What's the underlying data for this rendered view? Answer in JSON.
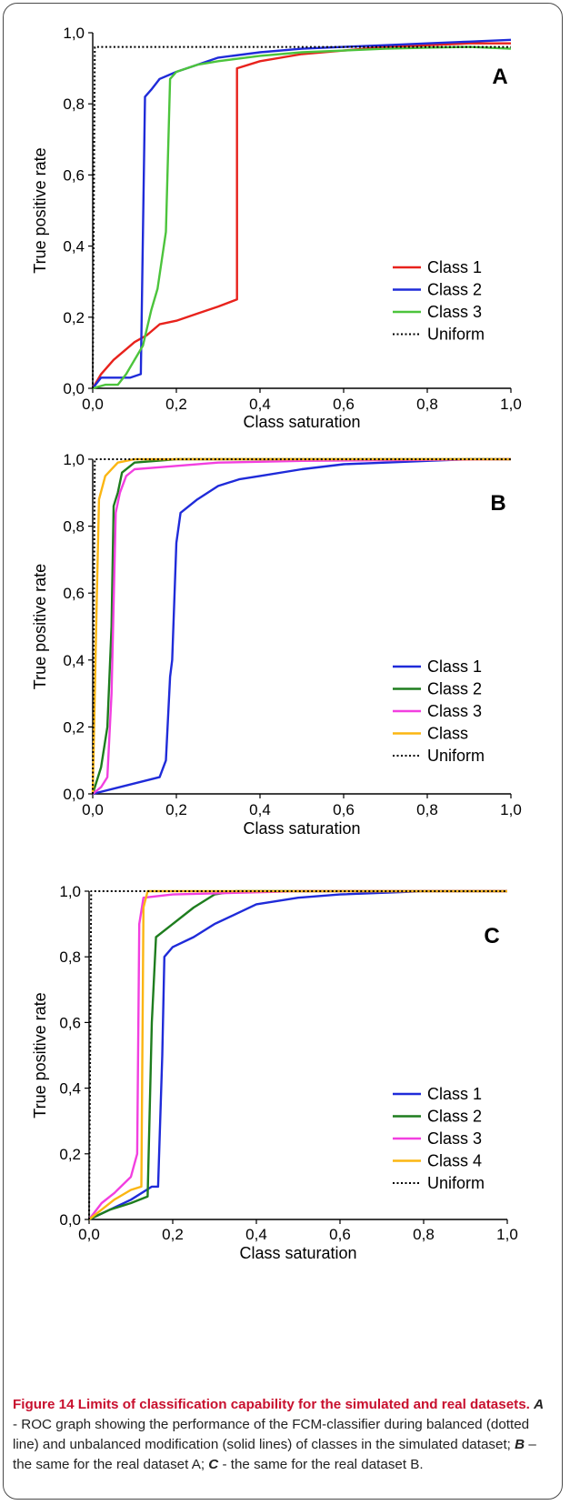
{
  "figure": {
    "label": "Figure 14",
    "title": "Limits of classification capability for the simulated and real datasets.",
    "caption_parts": [
      {
        "t": "A",
        "style": "bi"
      },
      {
        "t": " - ROC graph showing the performance of the FCM-classifier during balanced (dotted line) and unbalanced modification (solid lines) of classes in the simulated dataset; ",
        "style": "n"
      },
      {
        "t": "B",
        "style": "bi"
      },
      {
        "t": " – the same for the real dataset A; ",
        "style": "n"
      },
      {
        "t": "C",
        "style": "bi"
      },
      {
        "t": " - the same for the real dataset B.",
        "style": "n"
      }
    ]
  },
  "colors": {
    "red": "#e8221c",
    "blue": "#1f2bd9",
    "light_green": "#4cc43c",
    "dark_green": "#1e7d1e",
    "magenta": "#f23fe0",
    "orange": "#fbb612",
    "black": "#000000"
  },
  "chart_data": [
    {
      "type": "line",
      "panel_label": "A",
      "xlabel": "Class saturation",
      "ylabel": "True positive rate",
      "xlim": [
        0,
        1
      ],
      "ylim": [
        0,
        1
      ],
      "x_ticks": [
        "0,0",
        "0,2",
        "0,4",
        "0,6",
        "0,8",
        "1,0"
      ],
      "y_ticks": [
        "0,0",
        "0,2",
        "0,4",
        "0,6",
        "0,8",
        "1,0"
      ],
      "legend_position": "bottom-right",
      "series": [
        {
          "name": "Class 1",
          "color": "#e8221c",
          "style": "solid",
          "points": [
            [
              0,
              0
            ],
            [
              0.02,
              0.04
            ],
            [
              0.05,
              0.08
            ],
            [
              0.1,
              0.13
            ],
            [
              0.13,
              0.15
            ],
            [
              0.16,
              0.18
            ],
            [
              0.2,
              0.19
            ],
            [
              0.25,
              0.21
            ],
            [
              0.3,
              0.23
            ],
            [
              0.345,
              0.25
            ],
            [
              0.345,
              0.9
            ],
            [
              0.4,
              0.92
            ],
            [
              0.5,
              0.94
            ],
            [
              0.6,
              0.95
            ],
            [
              0.7,
              0.96
            ],
            [
              0.8,
              0.965
            ],
            [
              0.9,
              0.97
            ],
            [
              1.0,
              0.97
            ]
          ]
        },
        {
          "name": "Class 2",
          "color": "#1f2bd9",
          "style": "solid",
          "points": [
            [
              0,
              0
            ],
            [
              0.02,
              0.03
            ],
            [
              0.05,
              0.03
            ],
            [
              0.09,
              0.03
            ],
            [
              0.115,
              0.04
            ],
            [
              0.125,
              0.82
            ],
            [
              0.14,
              0.84
            ],
            [
              0.16,
              0.87
            ],
            [
              0.2,
              0.89
            ],
            [
              0.25,
              0.91
            ],
            [
              0.3,
              0.93
            ],
            [
              0.4,
              0.945
            ],
            [
              0.5,
              0.955
            ],
            [
              0.6,
              0.96
            ],
            [
              0.7,
              0.965
            ],
            [
              0.8,
              0.97
            ],
            [
              0.9,
              0.975
            ],
            [
              1.0,
              0.98
            ]
          ]
        },
        {
          "name": "Class 3",
          "color": "#4cc43c",
          "style": "solid",
          "points": [
            [
              0,
              0
            ],
            [
              0.03,
              0.01
            ],
            [
              0.06,
              0.01
            ],
            [
              0.08,
              0.04
            ],
            [
              0.12,
              0.12
            ],
            [
              0.14,
              0.22
            ],
            [
              0.155,
              0.28
            ],
            [
              0.175,
              0.44
            ],
            [
              0.185,
              0.87
            ],
            [
              0.2,
              0.89
            ],
            [
              0.25,
              0.91
            ],
            [
              0.3,
              0.92
            ],
            [
              0.4,
              0.935
            ],
            [
              0.5,
              0.945
            ],
            [
              0.6,
              0.95
            ],
            [
              0.7,
              0.955
            ],
            [
              0.8,
              0.958
            ],
            [
              0.9,
              0.96
            ],
            [
              1.0,
              0.955
            ]
          ]
        },
        {
          "name": "Uniform",
          "color": "#000000",
          "style": "dotted",
          "points": [
            [
              0,
              0
            ],
            [
              0.005,
              0.96
            ],
            [
              1.0,
              0.96
            ]
          ]
        }
      ]
    },
    {
      "type": "line",
      "panel_label": "B",
      "xlabel": "Class saturation",
      "ylabel": "True positive rate",
      "xlim": [
        0,
        1
      ],
      "ylim": [
        0,
        1
      ],
      "x_ticks": [
        "0,0",
        "0,2",
        "0,4",
        "0,6",
        "0,8",
        "1,0"
      ],
      "y_ticks": [
        "0,0",
        "0,2",
        "0,4",
        "0,6",
        "0,8",
        "1,0"
      ],
      "legend_position": "bottom-right",
      "series": [
        {
          "name": "Class 1",
          "color": "#1f2bd9",
          "style": "solid",
          "points": [
            [
              0,
              0
            ],
            [
              0.16,
              0.05
            ],
            [
              0.175,
              0.1
            ],
            [
              0.185,
              0.35
            ],
            [
              0.19,
              0.4
            ],
            [
              0.2,
              0.75
            ],
            [
              0.21,
              0.84
            ],
            [
              0.25,
              0.88
            ],
            [
              0.3,
              0.92
            ],
            [
              0.35,
              0.94
            ],
            [
              0.4,
              0.95
            ],
            [
              0.5,
              0.97
            ],
            [
              0.6,
              0.985
            ],
            [
              0.7,
              0.99
            ],
            [
              0.8,
              0.995
            ],
            [
              0.9,
              1.0
            ],
            [
              1.0,
              1.0
            ]
          ]
        },
        {
          "name": "Class 2",
          "color": "#1e7d1e",
          "style": "solid",
          "points": [
            [
              0,
              0
            ],
            [
              0.02,
              0.08
            ],
            [
              0.035,
              0.2
            ],
            [
              0.045,
              0.5
            ],
            [
              0.05,
              0.86
            ],
            [
              0.06,
              0.9
            ],
            [
              0.07,
              0.96
            ],
            [
              0.1,
              0.99
            ],
            [
              0.2,
              1.0
            ],
            [
              1.0,
              1.0
            ]
          ]
        },
        {
          "name": "Class 3",
          "color": "#f23fe0",
          "style": "solid",
          "points": [
            [
              0,
              0
            ],
            [
              0.02,
              0.02
            ],
            [
              0.035,
              0.05
            ],
            [
              0.045,
              0.3
            ],
            [
              0.055,
              0.84
            ],
            [
              0.065,
              0.9
            ],
            [
              0.08,
              0.95
            ],
            [
              0.1,
              0.97
            ],
            [
              0.15,
              0.975
            ],
            [
              0.3,
              0.99
            ],
            [
              0.5,
              0.995
            ],
            [
              1.0,
              1.0
            ]
          ]
        },
        {
          "name": "Class",
          "color": "#fbb612",
          "style": "solid",
          "points": [
            [
              0,
              0
            ],
            [
              0.01,
              0.6
            ],
            [
              0.015,
              0.88
            ],
            [
              0.03,
              0.95
            ],
            [
              0.06,
              0.99
            ],
            [
              0.1,
              1.0
            ],
            [
              1.0,
              1.0
            ]
          ]
        },
        {
          "name": "Uniform",
          "color": "#000000",
          "style": "dotted",
          "points": [
            [
              0,
              0
            ],
            [
              0.005,
              1.0
            ],
            [
              1.0,
              1.0
            ]
          ]
        }
      ]
    },
    {
      "type": "line",
      "panel_label": "C",
      "xlabel": "Class saturation",
      "ylabel": "True positive rate",
      "xlim": [
        0,
        1
      ],
      "ylim": [
        0,
        1
      ],
      "x_ticks": [
        "0,0",
        "0,2",
        "0,4",
        "0,6",
        "0,8",
        "1,0"
      ],
      "y_ticks": [
        "0,0",
        "0,2",
        "0,4",
        "0,6",
        "0,8",
        "1,0"
      ],
      "legend_position": "bottom-right",
      "series": [
        {
          "name": "Class 1",
          "color": "#1f2bd9",
          "style": "solid",
          "points": [
            [
              0,
              0
            ],
            [
              0.05,
              0.03
            ],
            [
              0.1,
              0.06
            ],
            [
              0.15,
              0.1
            ],
            [
              0.165,
              0.1
            ],
            [
              0.175,
              0.5
            ],
            [
              0.18,
              0.8
            ],
            [
              0.2,
              0.83
            ],
            [
              0.25,
              0.86
            ],
            [
              0.3,
              0.9
            ],
            [
              0.35,
              0.93
            ],
            [
              0.4,
              0.96
            ],
            [
              0.5,
              0.98
            ],
            [
              0.6,
              0.99
            ],
            [
              0.8,
              1.0
            ],
            [
              1.0,
              1.0
            ]
          ]
        },
        {
          "name": "Class 2",
          "color": "#1e7d1e",
          "style": "solid",
          "points": [
            [
              0,
              0
            ],
            [
              0.05,
              0.03
            ],
            [
              0.1,
              0.05
            ],
            [
              0.14,
              0.07
            ],
            [
              0.15,
              0.6
            ],
            [
              0.16,
              0.86
            ],
            [
              0.2,
              0.9
            ],
            [
              0.25,
              0.95
            ],
            [
              0.3,
              0.99
            ],
            [
              0.35,
              1.0
            ],
            [
              1.0,
              1.0
            ]
          ]
        },
        {
          "name": "Class 3",
          "color": "#f23fe0",
          "style": "solid",
          "points": [
            [
              0,
              0
            ],
            [
              0.03,
              0.05
            ],
            [
              0.06,
              0.08
            ],
            [
              0.1,
              0.13
            ],
            [
              0.115,
              0.2
            ],
            [
              0.12,
              0.9
            ],
            [
              0.13,
              0.98
            ],
            [
              0.2,
              0.99
            ],
            [
              0.5,
              1.0
            ],
            [
              1.0,
              1.0
            ]
          ]
        },
        {
          "name": "Class 4",
          "color": "#fbb612",
          "style": "solid",
          "points": [
            [
              0,
              0
            ],
            [
              0.03,
              0.03
            ],
            [
              0.06,
              0.06
            ],
            [
              0.1,
              0.09
            ],
            [
              0.125,
              0.1
            ],
            [
              0.13,
              0.95
            ],
            [
              0.14,
              1.0
            ],
            [
              1.0,
              1.0
            ]
          ]
        },
        {
          "name": "Uniform",
          "color": "#000000",
          "style": "dotted",
          "points": [
            [
              0,
              0
            ],
            [
              0.005,
              1.0
            ],
            [
              1.0,
              1.0
            ]
          ]
        }
      ]
    }
  ]
}
